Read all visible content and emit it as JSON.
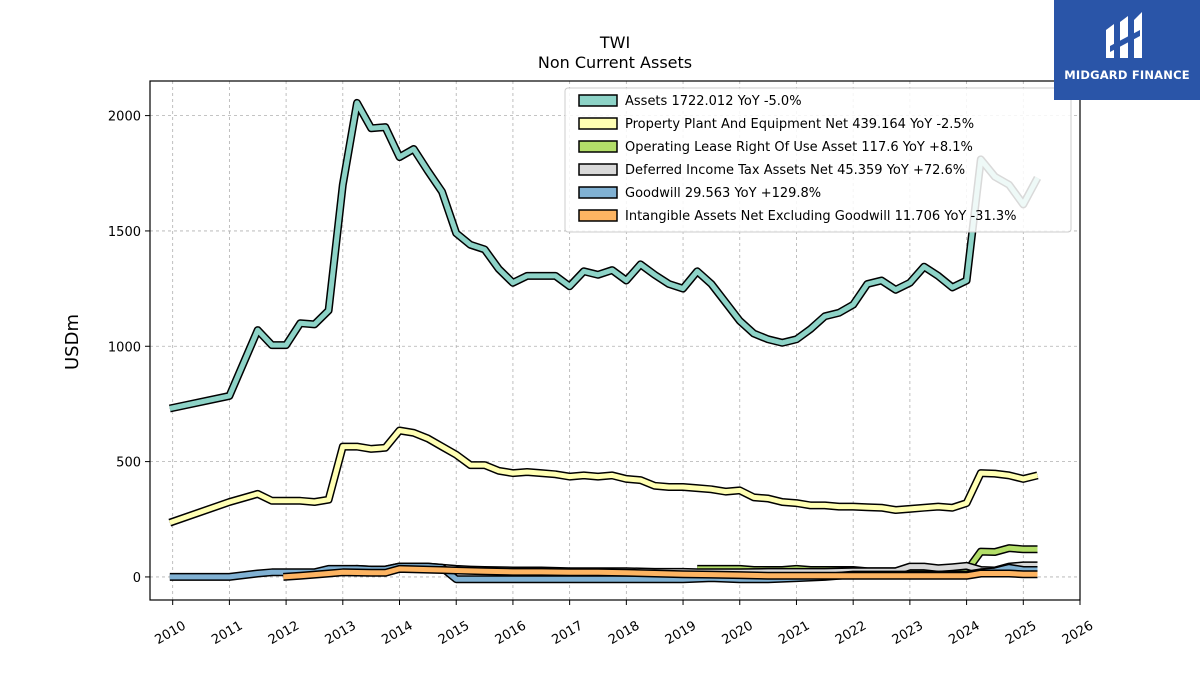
{
  "logo": {
    "text": "MIDGARD FINANCE",
    "bg_color": "#2a55a8"
  },
  "chart_data": {
    "type": "line",
    "title": "TWI",
    "subtitle": "Non Current  Assets",
    "ylabel": "USDm",
    "xlabel": "",
    "xlim": [
      2009.6,
      2026.0
    ],
    "ylim": [
      -100,
      2150
    ],
    "x_ticks": [
      "2010",
      "2011",
      "2012",
      "2013",
      "2014",
      "2015",
      "2016",
      "2017",
      "2018",
      "2019",
      "2020",
      "2021",
      "2022",
      "2023",
      "2024",
      "2025",
      "2026"
    ],
    "y_ticks": [
      "0",
      "500",
      "1000",
      "1500",
      "2000"
    ],
    "grid": true,
    "legend_position": "top-right",
    "series": [
      {
        "name": "Assets  1722.012 YoY -5.0%",
        "color": "#8dd3c7",
        "points": [
          [
            2009.95,
            730
          ],
          [
            2011.0,
            785
          ],
          [
            2011.5,
            1070
          ],
          [
            2011.75,
            1005
          ],
          [
            2012.0,
            1005
          ],
          [
            2012.25,
            1100
          ],
          [
            2012.5,
            1095
          ],
          [
            2012.75,
            1155
          ],
          [
            2013.0,
            1700
          ],
          [
            2013.25,
            2055
          ],
          [
            2013.5,
            1945
          ],
          [
            2013.75,
            1950
          ],
          [
            2014.0,
            1820
          ],
          [
            2014.25,
            1855
          ],
          [
            2014.5,
            1760
          ],
          [
            2014.75,
            1670
          ],
          [
            2015.0,
            1490
          ],
          [
            2015.25,
            1440
          ],
          [
            2015.5,
            1420
          ],
          [
            2015.75,
            1335
          ],
          [
            2016.0,
            1275
          ],
          [
            2016.25,
            1305
          ],
          [
            2016.5,
            1305
          ],
          [
            2016.75,
            1305
          ],
          [
            2017.0,
            1260
          ],
          [
            2017.25,
            1325
          ],
          [
            2017.5,
            1310
          ],
          [
            2017.75,
            1330
          ],
          [
            2018.0,
            1285
          ],
          [
            2018.25,
            1355
          ],
          [
            2018.5,
            1310
          ],
          [
            2018.75,
            1270
          ],
          [
            2019.0,
            1250
          ],
          [
            2019.25,
            1325
          ],
          [
            2019.5,
            1270
          ],
          [
            2019.75,
            1190
          ],
          [
            2020.0,
            1110
          ],
          [
            2020.25,
            1055
          ],
          [
            2020.5,
            1030
          ],
          [
            2020.75,
            1015
          ],
          [
            2021.0,
            1030
          ],
          [
            2021.25,
            1075
          ],
          [
            2021.5,
            1130
          ],
          [
            2021.75,
            1145
          ],
          [
            2022.0,
            1180
          ],
          [
            2022.25,
            1270
          ],
          [
            2022.5,
            1285
          ],
          [
            2022.75,
            1245
          ],
          [
            2023.0,
            1275
          ],
          [
            2023.25,
            1345
          ],
          [
            2023.5,
            1305
          ],
          [
            2023.75,
            1255
          ],
          [
            2024.0,
            1285
          ],
          [
            2024.25,
            1810
          ],
          [
            2024.5,
            1735
          ],
          [
            2024.75,
            1700
          ],
          [
            2025.0,
            1615
          ],
          [
            2025.25,
            1730
          ]
        ]
      },
      {
        "name": "Property Plant And Equipment Net  439.164 YoY -2.5%",
        "color": "#ffffb3",
        "points": [
          [
            2009.95,
            235
          ],
          [
            2011.0,
            325
          ],
          [
            2011.5,
            360
          ],
          [
            2011.75,
            330
          ],
          [
            2012.0,
            330
          ],
          [
            2012.25,
            330
          ],
          [
            2012.5,
            325
          ],
          [
            2012.75,
            335
          ],
          [
            2013.0,
            565
          ],
          [
            2013.25,
            565
          ],
          [
            2013.5,
            555
          ],
          [
            2013.75,
            560
          ],
          [
            2014.0,
            635
          ],
          [
            2014.25,
            625
          ],
          [
            2014.5,
            600
          ],
          [
            2014.75,
            565
          ],
          [
            2015.0,
            530
          ],
          [
            2015.25,
            485
          ],
          [
            2015.5,
            485
          ],
          [
            2015.75,
            460
          ],
          [
            2016.0,
            450
          ],
          [
            2016.25,
            455
          ],
          [
            2016.5,
            450
          ],
          [
            2016.75,
            445
          ],
          [
            2017.0,
            435
          ],
          [
            2017.25,
            440
          ],
          [
            2017.5,
            435
          ],
          [
            2017.75,
            440
          ],
          [
            2018.0,
            425
          ],
          [
            2018.25,
            420
          ],
          [
            2018.5,
            395
          ],
          [
            2018.75,
            390
          ],
          [
            2019.0,
            390
          ],
          [
            2019.25,
            385
          ],
          [
            2019.5,
            380
          ],
          [
            2019.75,
            370
          ],
          [
            2020.0,
            375
          ],
          [
            2020.25,
            345
          ],
          [
            2020.5,
            340
          ],
          [
            2020.75,
            325
          ],
          [
            2021.0,
            320
          ],
          [
            2021.25,
            310
          ],
          [
            2021.5,
            310
          ],
          [
            2021.75,
            305
          ],
          [
            2022.0,
            305
          ],
          [
            2022.25,
            302
          ],
          [
            2022.5,
            300
          ],
          [
            2022.75,
            290
          ],
          [
            2023.0,
            295
          ],
          [
            2023.25,
            300
          ],
          [
            2023.5,
            305
          ],
          [
            2023.75,
            300
          ],
          [
            2024.0,
            320
          ],
          [
            2024.25,
            450
          ],
          [
            2024.5,
            448
          ],
          [
            2024.75,
            440
          ],
          [
            2025.0,
            425
          ],
          [
            2025.25,
            440
          ]
        ]
      },
      {
        "name": "Operating Lease Right Of Use Asset  117.6 YoY +8.1%",
        "color": "#b3de69",
        "points": [
          [
            2019.25,
            35
          ],
          [
            2019.5,
            35
          ],
          [
            2019.75,
            35
          ],
          [
            2020.0,
            35
          ],
          [
            2020.25,
            30
          ],
          [
            2020.5,
            30
          ],
          [
            2020.75,
            30
          ],
          [
            2021.0,
            35
          ],
          [
            2021.25,
            30
          ],
          [
            2021.5,
            30
          ],
          [
            2021.75,
            30
          ],
          [
            2022.0,
            30
          ],
          [
            2022.25,
            25
          ],
          [
            2022.5,
            25
          ],
          [
            2022.75,
            25
          ],
          [
            2023.0,
            25
          ],
          [
            2023.25,
            25
          ],
          [
            2023.5,
            25
          ],
          [
            2023.75,
            25
          ],
          [
            2024.0,
            25
          ],
          [
            2024.25,
            110
          ],
          [
            2024.5,
            108
          ],
          [
            2024.75,
            125
          ],
          [
            2025.0,
            120
          ],
          [
            2025.25,
            120
          ]
        ]
      },
      {
        "name": "Deferred Income Tax Assets Net  45.359 YoY +72.6%",
        "color": "#d9d9d9",
        "points": [
          [
            2012.75,
            30
          ],
          [
            2013.0,
            30
          ],
          [
            2013.25,
            35
          ],
          [
            2013.5,
            32
          ],
          [
            2013.75,
            32
          ],
          [
            2014.0,
            45
          ],
          [
            2014.25,
            45
          ],
          [
            2014.5,
            45
          ],
          [
            2014.75,
            40
          ],
          [
            2015.0,
            35
          ],
          [
            2015.25,
            32
          ],
          [
            2015.5,
            30
          ],
          [
            2016.0,
            28
          ],
          [
            2016.5,
            28
          ],
          [
            2017.0,
            25
          ],
          [
            2017.5,
            25
          ],
          [
            2018.0,
            25
          ],
          [
            2018.5,
            22
          ],
          [
            2019.0,
            22
          ],
          [
            2019.25,
            20
          ],
          [
            2019.5,
            20
          ],
          [
            2020.0,
            20
          ],
          [
            2020.5,
            22
          ],
          [
            2021.0,
            22
          ],
          [
            2021.5,
            22
          ],
          [
            2022.0,
            25
          ],
          [
            2022.5,
            25
          ],
          [
            2022.75,
            25
          ],
          [
            2023.0,
            45
          ],
          [
            2023.25,
            45
          ],
          [
            2023.5,
            38
          ],
          [
            2023.75,
            42
          ],
          [
            2024.0,
            48
          ],
          [
            2024.25,
            30
          ],
          [
            2024.5,
            28
          ],
          [
            2024.75,
            45
          ],
          [
            2025.0,
            50
          ],
          [
            2025.25,
            50
          ]
        ]
      },
      {
        "name": "Goodwill  29.563 YoY +129.8%",
        "color": "#80b1d3",
        "points": [
          [
            2009.95,
            0
          ],
          [
            2011.0,
            0
          ],
          [
            2011.5,
            15
          ],
          [
            2011.75,
            20
          ],
          [
            2012.0,
            20
          ],
          [
            2012.5,
            20
          ],
          [
            2012.75,
            35
          ],
          [
            2013.0,
            35
          ],
          [
            2013.25,
            35
          ],
          [
            2013.5,
            32
          ],
          [
            2013.75,
            32
          ],
          [
            2014.0,
            45
          ],
          [
            2014.5,
            45
          ],
          [
            2014.75,
            40
          ],
          [
            2015.0,
            -10
          ],
          [
            2015.5,
            -10
          ],
          [
            2016.0,
            -10
          ],
          [
            2016.5,
            -10
          ],
          [
            2017.0,
            -10
          ],
          [
            2017.5,
            -10
          ],
          [
            2018.0,
            -10
          ],
          [
            2018.5,
            -10
          ],
          [
            2019.0,
            -10
          ],
          [
            2019.5,
            -5
          ],
          [
            2020.0,
            -10
          ],
          [
            2020.5,
            -10
          ],
          [
            2021.0,
            -5
          ],
          [
            2021.5,
            0
          ],
          [
            2022.0,
            10
          ],
          [
            2022.5,
            10
          ],
          [
            2023.0,
            10
          ],
          [
            2023.5,
            10
          ],
          [
            2024.0,
            10
          ],
          [
            2024.25,
            20
          ],
          [
            2024.5,
            25
          ],
          [
            2024.75,
            40
          ],
          [
            2025.0,
            30
          ],
          [
            2025.25,
            30
          ]
        ]
      },
      {
        "name": "Intangible Assets Net Excluding Goodwill  11.706 YoY -31.3%",
        "color": "#fdb462",
        "points": [
          [
            2011.95,
            0
          ],
          [
            2012.25,
            5
          ],
          [
            2012.5,
            10
          ],
          [
            2012.75,
            15
          ],
          [
            2013.0,
            20
          ],
          [
            2013.5,
            18
          ],
          [
            2013.75,
            18
          ],
          [
            2014.0,
            35
          ],
          [
            2014.5,
            32
          ],
          [
            2014.75,
            30
          ],
          [
            2015.0,
            28
          ],
          [
            2015.5,
            25
          ],
          [
            2016.0,
            22
          ],
          [
            2016.5,
            22
          ],
          [
            2017.0,
            20
          ],
          [
            2017.5,
            20
          ],
          [
            2018.0,
            18
          ],
          [
            2018.5,
            15
          ],
          [
            2019.0,
            12
          ],
          [
            2019.5,
            10
          ],
          [
            2020.0,
            8
          ],
          [
            2020.5,
            5
          ],
          [
            2021.0,
            5
          ],
          [
            2021.5,
            5
          ],
          [
            2022.0,
            5
          ],
          [
            2022.5,
            5
          ],
          [
            2023.0,
            5
          ],
          [
            2023.5,
            5
          ],
          [
            2024.0,
            5
          ],
          [
            2024.25,
            15
          ],
          [
            2024.5,
            15
          ],
          [
            2024.75,
            15
          ],
          [
            2025.0,
            12
          ],
          [
            2025.25,
            12
          ]
        ]
      }
    ]
  }
}
